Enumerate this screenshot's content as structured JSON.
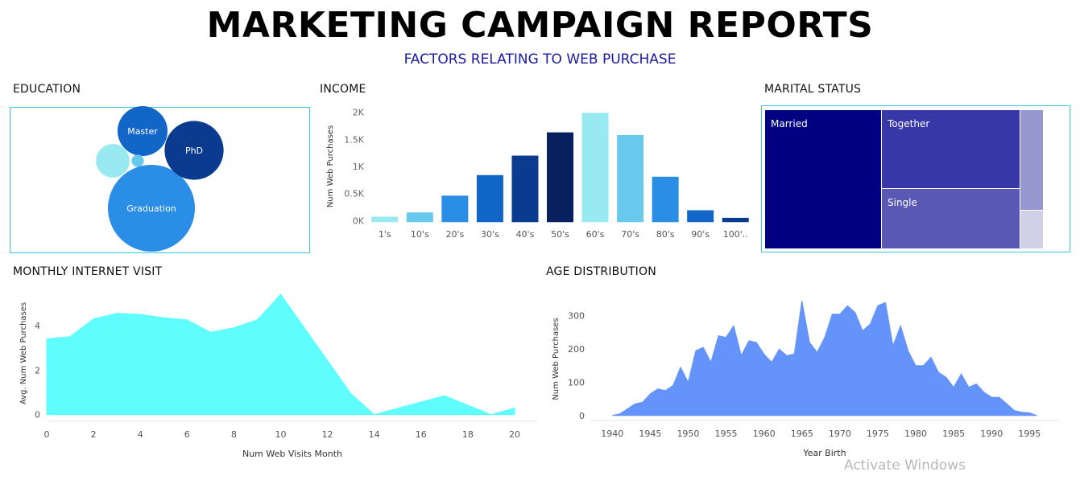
{
  "header": {
    "title": "MARKETING CAMPAIGN REPORTS",
    "subtitle": "FACTORS RELATING TO WEB PURCHASE"
  },
  "sections": {
    "education": "EDUCATION",
    "income": "INCOME",
    "marital": "MARITAL STATUS",
    "monthly": "MONTHLY INTERNET VISIT",
    "age": "AGE DISTRIBUTION"
  },
  "watermark": "Activate Windows",
  "chart_data": [
    {
      "type": "bubble",
      "title": "EDUCATION",
      "series": [
        {
          "name": "Graduation",
          "value": 100,
          "color": "#2b8ee6",
          "label": "Graduation"
        },
        {
          "name": "PhD",
          "value": 46,
          "color": "#0a3b8f",
          "label": "PhD"
        },
        {
          "name": "Master",
          "value": 33,
          "color": "#1266c8",
          "label": "Master"
        },
        {
          "name": "",
          "value": 15,
          "color": "#98eaf0",
          "label": ""
        },
        {
          "name": "",
          "value": 2,
          "color": "#68c9ec",
          "label": ""
        }
      ]
    },
    {
      "type": "bar",
      "title": "INCOME",
      "categories": [
        "1's",
        "10's",
        "20's",
        "30's",
        "40's",
        "50's",
        "60's",
        "70's",
        "80's",
        "90's",
        "100'.."
      ],
      "values": [
        70,
        150,
        460,
        840,
        1200,
        1630,
        1990,
        1580,
        810,
        190,
        50
      ],
      "colors": [
        "#98eaf0",
        "#68c9ec",
        "#2b8ee6",
        "#1266c8",
        "#0a3b8f",
        "#08205e",
        "#98eaf0",
        "#68c9ec",
        "#2b8ee6",
        "#1266c8",
        "#0a3b8f"
      ],
      "ylabel": "Num Web Purchases",
      "yticks": [
        "0K",
        "0.5K",
        "1K",
        "1.5K",
        "2K"
      ],
      "ylim": [
        -100,
        2100
      ]
    },
    {
      "type": "treemap",
      "title": "MARITAL STATUS",
      "series": [
        {
          "name": "Married",
          "value": 39,
          "color": "#000080",
          "label": "Married"
        },
        {
          "name": "Together",
          "value": 26,
          "color": "#3737a8",
          "label": "Together"
        },
        {
          "name": "Single",
          "value": 21,
          "color": "#5959b5",
          "label": "Single"
        },
        {
          "name": "",
          "value": 10,
          "color": "#9898d0",
          "label": ""
        },
        {
          "name": "",
          "value": 4,
          "color": "#d0d0e6",
          "label": ""
        }
      ]
    },
    {
      "type": "area",
      "title": "MONTHLY INTERNET VISIT",
      "x": [
        0,
        1,
        2,
        3,
        4,
        5,
        6,
        7,
        8,
        9,
        10,
        13,
        14,
        17,
        19,
        20
      ],
      "y": [
        3.4,
        3.5,
        4.3,
        4.55,
        4.5,
        4.35,
        4.25,
        3.7,
        3.9,
        4.25,
        5.4,
        0.95,
        0.0,
        0.85,
        0.0,
        0.3
      ],
      "xlabel": "Num Web Visits Month",
      "ylabel": "Avg. Num Web Purchases",
      "xticks": [
        0,
        2,
        4,
        6,
        8,
        10,
        12,
        14,
        16,
        18,
        20
      ],
      "yticks": [
        0,
        2,
        4
      ],
      "xlim": [
        0,
        21
      ],
      "ylim": [
        -0.3,
        5.8
      ],
      "color": "#5ffdfd"
    },
    {
      "type": "area",
      "title": "AGE DISTRIBUTION",
      "x": [
        1940,
        1941,
        1942,
        1943,
        1944,
        1945,
        1946,
        1947,
        1948,
        1949,
        1950,
        1951,
        1952,
        1953,
        1954,
        1955,
        1956,
        1957,
        1958,
        1959,
        1960,
        1961,
        1962,
        1963,
        1964,
        1965,
        1966,
        1967,
        1968,
        1969,
        1970,
        1971,
        1972,
        1973,
        1974,
        1975,
        1976,
        1977,
        1978,
        1979,
        1980,
        1981,
        1982,
        1983,
        1984,
        1985,
        1986,
        1987,
        1988,
        1989,
        1990,
        1991,
        1992,
        1993,
        1994,
        1995,
        1996
      ],
      "y": [
        0,
        5,
        20,
        35,
        40,
        65,
        80,
        75,
        90,
        145,
        100,
        195,
        205,
        160,
        240,
        235,
        270,
        180,
        225,
        220,
        185,
        160,
        200,
        180,
        185,
        345,
        220,
        190,
        235,
        305,
        305,
        330,
        310,
        255,
        275,
        330,
        340,
        210,
        270,
        195,
        150,
        150,
        175,
        130,
        115,
        85,
        125,
        85,
        95,
        70,
        55,
        55,
        35,
        15,
        10,
        8,
        0
      ],
      "xlabel": "Year Birth",
      "ylabel": "Num Web Purchases",
      "xticks": [
        1940,
        1945,
        1950,
        1955,
        1960,
        1965,
        1970,
        1975,
        1980,
        1985,
        1990,
        1995
      ],
      "yticks": [
        0,
        100,
        200,
        300
      ],
      "xlim": [
        1937,
        1999
      ],
      "ylim": [
        -15,
        355
      ],
      "color": "#6494fa"
    }
  ]
}
